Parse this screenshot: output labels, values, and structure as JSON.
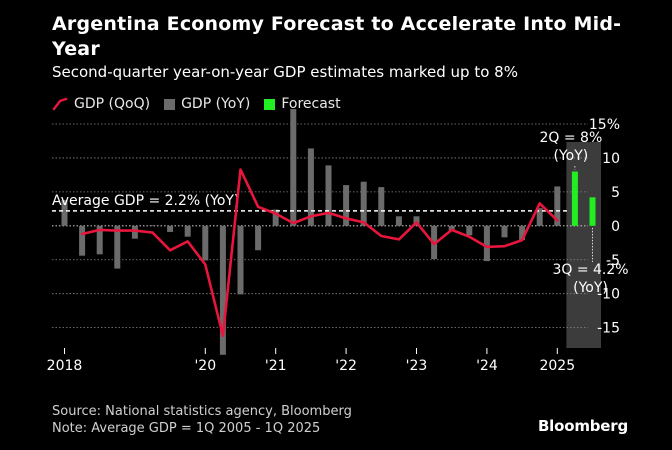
{
  "title": "Argentina Economy Forecast to Accelerate Into Mid-Year",
  "subtitle": "Second-quarter year-on-year GDP estimates marked up to 8%",
  "legend": {
    "qoq": "GDP (QoQ)",
    "yoy": "GDP (YoY)",
    "forecast": "Forecast"
  },
  "colors": {
    "qoq": "#e8163c",
    "yoy": "#6b6b6b",
    "forecast": "#22ee22",
    "shade": "#3c3c3c",
    "grid": "#8a8a8a"
  },
  "footer": {
    "source": "Source: National statistics agency, Bloomberg",
    "note": "Note: Average GDP = 1Q 2005 - 1Q 2025"
  },
  "brand": "Bloomberg",
  "chart_data": {
    "type": "bar+line",
    "title": "Argentina Economy Forecast to Accelerate Into Mid-Year",
    "ylim": [
      -18,
      15
    ],
    "y_ticks": [
      15,
      10,
      5,
      0,
      -5,
      -10,
      -15
    ],
    "y_tick_labels": [
      "15%",
      "10",
      "5",
      "0",
      "-5",
      "-10",
      "-15"
    ],
    "x_ticks": [
      {
        "label": "2018",
        "quarter_index": 0
      },
      {
        "label": "'20",
        "quarter_index": 8
      },
      {
        "label": "'21",
        "quarter_index": 12
      },
      {
        "label": "'22",
        "quarter_index": 16
      },
      {
        "label": "'23",
        "quarter_index": 20
      },
      {
        "label": "'24",
        "quarter_index": 24
      },
      {
        "label": "2025",
        "quarter_index": 28
      }
    ],
    "quarters": [
      "1Q18",
      "2Q18",
      "3Q18",
      "4Q18",
      "1Q19",
      "2Q19",
      "3Q19",
      "4Q19",
      "1Q20",
      "2Q20",
      "3Q20",
      "4Q20",
      "1Q21",
      "2Q21",
      "3Q21",
      "4Q21",
      "1Q22",
      "2Q22",
      "3Q22",
      "4Q22",
      "1Q23",
      "2Q23",
      "3Q23",
      "4Q23",
      "1Q24",
      "2Q24",
      "3Q24",
      "4Q24",
      "1Q25",
      "2Q25",
      "3Q25"
    ],
    "series": [
      {
        "name": "GDP (YoY)",
        "type": "bar",
        "values": [
          3.8,
          -4.4,
          -4.2,
          -6.3,
          -1.9,
          0.1,
          -0.9,
          -1.6,
          -5.1,
          -19.0,
          -10.1,
          -3.6,
          2.4,
          17.2,
          11.4,
          8.9,
          6.0,
          6.5,
          5.7,
          1.4,
          1.4,
          -4.9,
          -0.8,
          -1.4,
          -5.2,
          -1.7,
          -2.1,
          2.6,
          5.8,
          null,
          null
        ]
      },
      {
        "name": "GDP (QoQ)",
        "type": "line",
        "values": [
          null,
          -1.2,
          -0.6,
          -0.7,
          -0.7,
          -1.0,
          -3.6,
          -2.3,
          -5.7,
          -16.2,
          8.3,
          2.8,
          1.8,
          0.4,
          1.4,
          1.9,
          1.1,
          0.5,
          -1.5,
          -2.0,
          0.5,
          -2.7,
          -0.6,
          -1.6,
          -3.1,
          -3.0,
          -2.1,
          3.3,
          0.8,
          null,
          null
        ]
      },
      {
        "name": "Forecast",
        "type": "bar",
        "values": [
          null,
          null,
          null,
          null,
          null,
          null,
          null,
          null,
          null,
          null,
          null,
          null,
          null,
          null,
          null,
          null,
          null,
          null,
          null,
          null,
          null,
          null,
          null,
          null,
          null,
          null,
          null,
          null,
          null,
          8.0,
          4.2
        ]
      }
    ],
    "reference_line": {
      "label": "Average GDP = 2.2% (YoY)",
      "value": 2.2
    },
    "annotations": {
      "q2_top": "2Q = 8%",
      "q2_bottom": "(YoY)",
      "q3_top": "3Q = 4.2%",
      "q3_bottom": "(YoY)"
    }
  }
}
